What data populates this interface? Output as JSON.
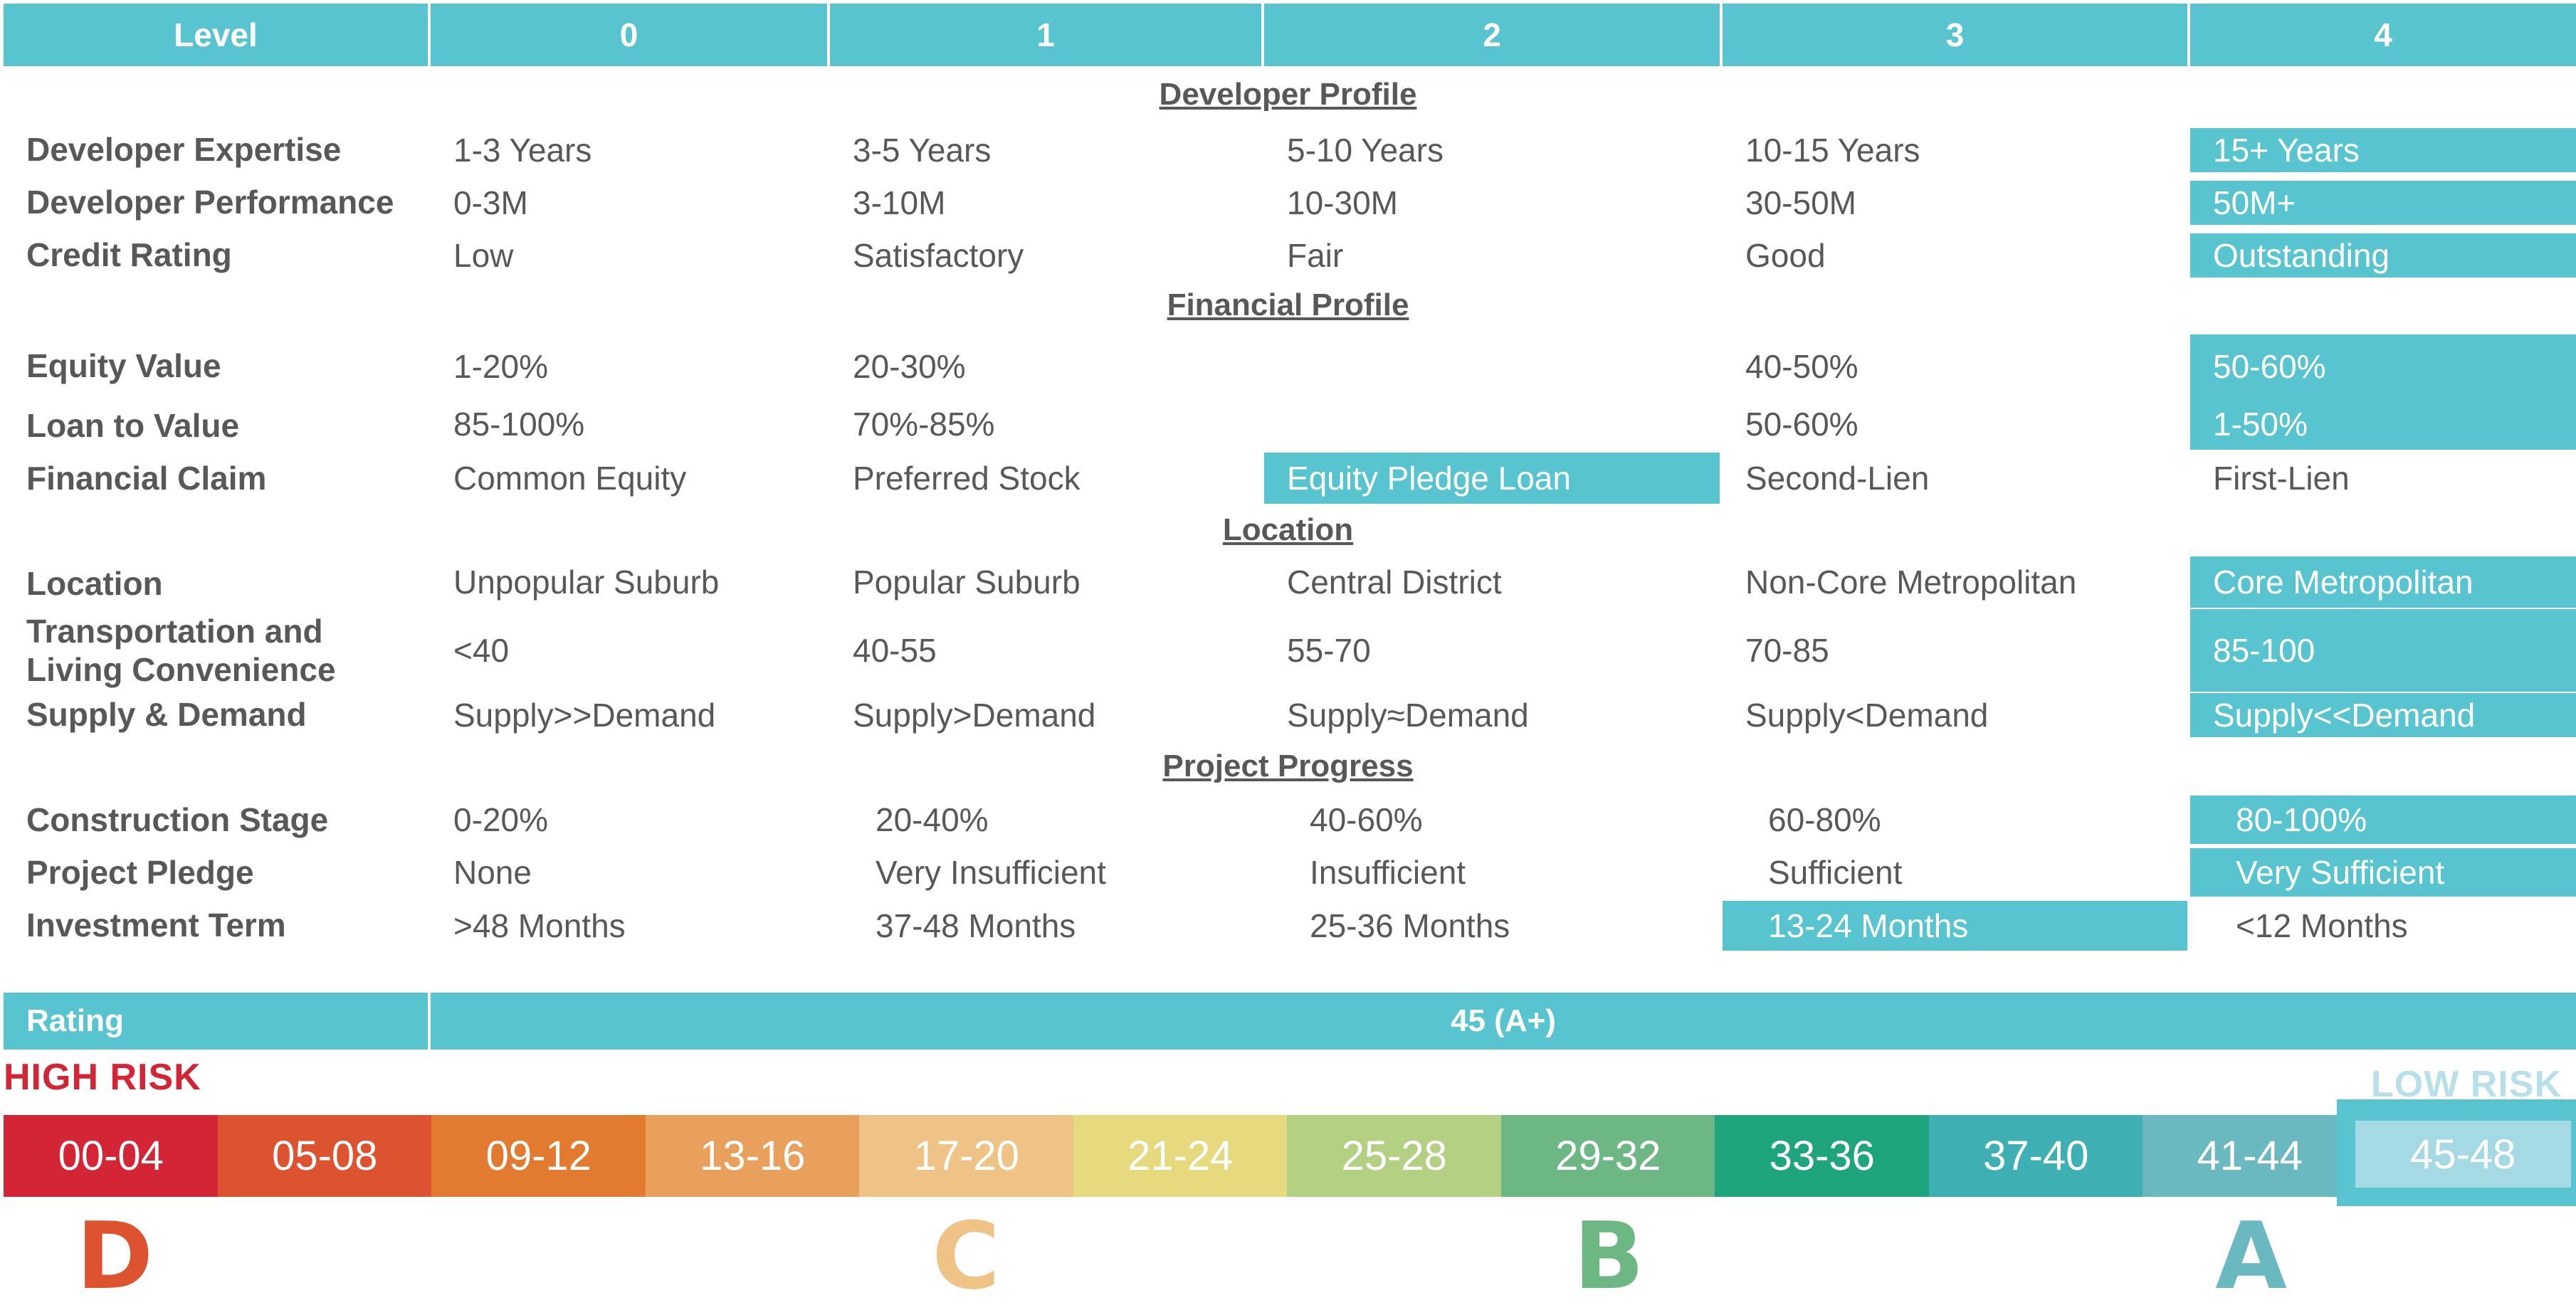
{
  "header": {
    "level_label": "Level",
    "levels": [
      "0",
      "1",
      "2",
      "3",
      "4"
    ]
  },
  "sections": [
    {
      "title": "Developer Profile",
      "rows": [
        {
          "label": "Developer Expertise",
          "values": [
            "1-3 Years",
            "3-5 Years",
            "5-10 Years",
            "10-15 Years",
            "15+ Years"
          ],
          "selected": 4
        },
        {
          "label": "Developer Performance",
          "values": [
            "0-3M",
            "3-10M",
            "10-30M",
            "30-50M",
            "50M+"
          ],
          "selected": 4
        },
        {
          "label": "Credit Rating",
          "values": [
            "Low",
            "Satisfactory",
            "Fair",
            "Good",
            "Outstanding"
          ],
          "selected": 4
        }
      ]
    },
    {
      "title": "Financial Profile",
      "rows": [
        {
          "label": "Equity Value",
          "values": [
            "1-20%",
            "20-30%",
            "",
            "40-50%",
            "50-60%"
          ],
          "selected": 4
        },
        {
          "label": "Loan to Value",
          "values": [
            "85-100%",
            "70%-85%",
            "",
            "50-60%",
            "1-50%"
          ],
          "selected": 4
        },
        {
          "label": "Financial Claim",
          "values": [
            "Common Equity",
            "Preferred Stock",
            "Equity Pledge Loan",
            "Second-Lien",
            "First-Lien"
          ],
          "selected": 2
        }
      ]
    },
    {
      "title": "Location",
      "rows": [
        {
          "label": "Location",
          "values": [
            "Unpopular Suburb",
            "Popular Suburb",
            "Central District",
            "Non-Core Metropolitan",
            "Core Metropolitan"
          ],
          "selected": 4
        },
        {
          "label": "Transportation and Living Convenience",
          "values": [
            "<40",
            "40-55",
            "55-70",
            "70-85",
            "85-100"
          ],
          "selected": 4
        },
        {
          "label": "Supply & Demand",
          "values": [
            "Supply>>Demand",
            "Supply>Demand",
            "Supply≈Demand",
            "Supply<Demand",
            "Supply<<Demand"
          ],
          "selected": 4
        }
      ]
    },
    {
      "title": "Project Progress",
      "rows": [
        {
          "label": "Construction Stage",
          "values": [
            "0-20%",
            "20-40%",
            "40-60%",
            "60-80%",
            "80-100%"
          ],
          "selected": 4
        },
        {
          "label": "Project Pledge",
          "values": [
            "None",
            "Very Insufficient",
            "Insufficient",
            "Sufficient",
            "Very Sufficient"
          ],
          "selected": 4
        },
        {
          "label": "Investment Term",
          "values": [
            ">48 Months",
            "37-48 Months",
            "25-36 Months",
            "13-24 Months",
            "<12 Months"
          ],
          "selected": 3
        }
      ]
    }
  ],
  "rating": {
    "label": "Rating",
    "value": "45 (A+)"
  },
  "scale": {
    "high_risk_label": "HIGH RISK",
    "low_risk_label": "LOW RISK",
    "segments": [
      {
        "range": "00-04",
        "color": "#d42536"
      },
      {
        "range": "05-08",
        "color": "#dd5330"
      },
      {
        "range": "09-12",
        "color": "#e27a30"
      },
      {
        "range": "13-16",
        "color": "#e8a05c"
      },
      {
        "range": "17-20",
        "color": "#efc286"
      },
      {
        "range": "21-24",
        "color": "#e7d97e"
      },
      {
        "range": "25-28",
        "color": "#b4d082"
      },
      {
        "range": "29-32",
        "color": "#6db784"
      },
      {
        "range": "33-36",
        "color": "#1fa57e"
      },
      {
        "range": "37-40",
        "color": "#3eb0b3"
      },
      {
        "range": "41-44",
        "color": "#6ab9c0"
      },
      {
        "range": "45-48",
        "color": "#a5d9e4"
      }
    ],
    "selected_segment": 11,
    "grades": [
      {
        "letter": "D",
        "color": "#dd5330"
      },
      {
        "letter": "C",
        "color": "#efc286"
      },
      {
        "letter": "B",
        "color": "#6db784"
      },
      {
        "letter": "A",
        "color": "#6ab9c0"
      }
    ]
  },
  "colors": {
    "accent": "#57c4cf",
    "text": "#585858",
    "high_risk": "#d42536",
    "low_risk": "#b9dfe8"
  }
}
